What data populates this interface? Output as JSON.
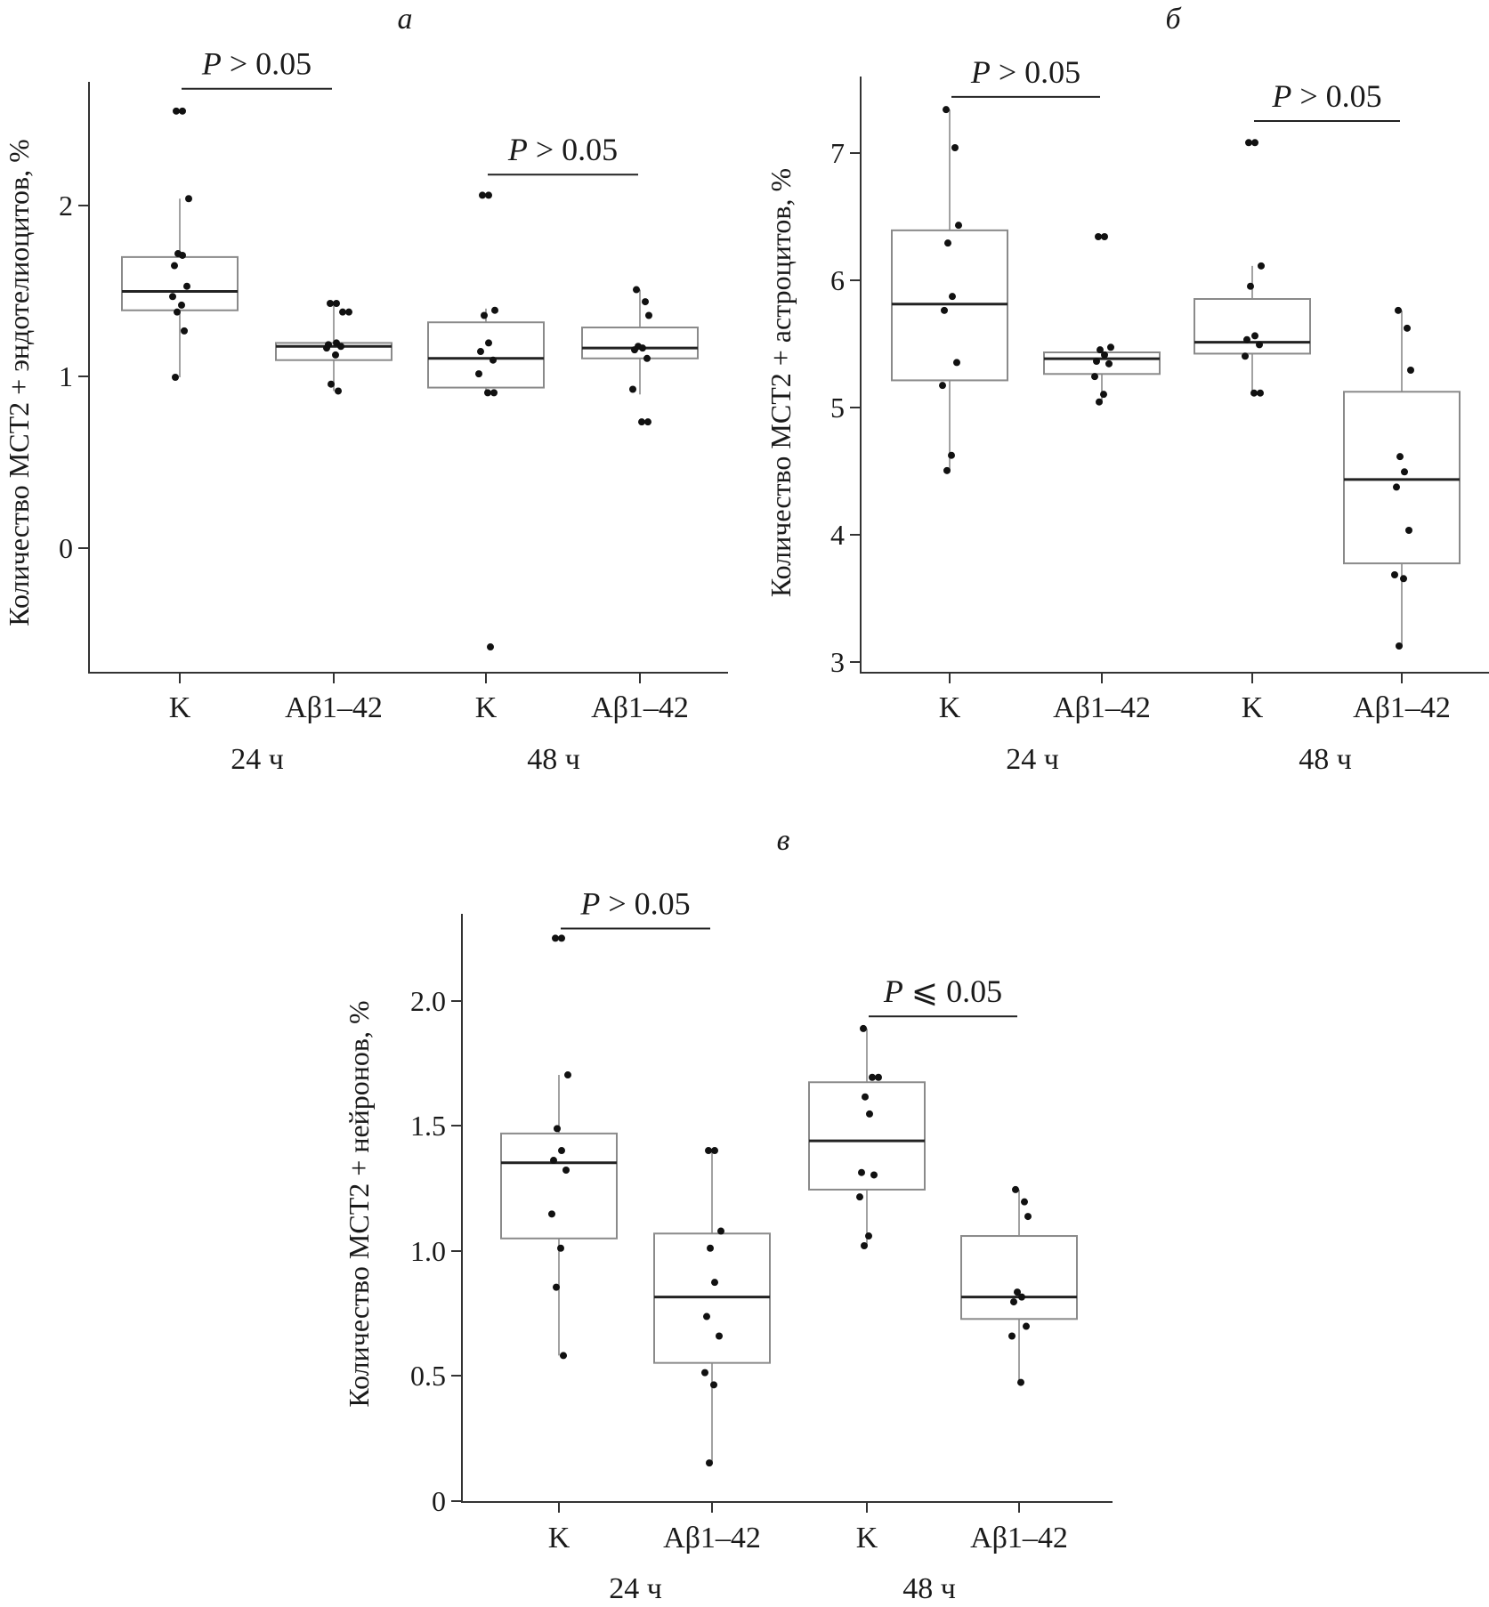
{
  "colors": {
    "axis": "#333333",
    "box_edge": "#8a8a8a",
    "median": "#222222",
    "points": "#111111",
    "background": "#ffffff"
  },
  "chart_data": [
    {
      "id": "a",
      "type": "box",
      "panel_label": "а",
      "ylabel": "Количество MCT2 + эндотелиоцитов, %",
      "ylim": [
        -0.72,
        2.72
      ],
      "yticks": [
        0,
        1,
        2
      ],
      "ytick_labels": [
        "0",
        "1",
        "2"
      ],
      "categories": [
        "K",
        "Aβ1–42",
        "K",
        "Aβ1–42"
      ],
      "group_labels": [
        "24 ч",
        "48 ч"
      ],
      "boxes": [
        {
          "category": "K",
          "group": "24 ч",
          "min": 1.0,
          "q1": 1.39,
          "median": 1.5,
          "q3": 1.7,
          "max": 2.04
        },
        {
          "category": "Aβ1–42",
          "group": "24 ч",
          "min": 0.92,
          "q1": 1.1,
          "median": 1.18,
          "q3": 1.2,
          "max": 1.42
        },
        {
          "category": "K",
          "group": "48 ч",
          "min": 0.9,
          "q1": 0.94,
          "median": 1.11,
          "q3": 1.32,
          "max": 1.4
        },
        {
          "category": "Aβ1–42",
          "group": "48 ч",
          "min": 0.9,
          "q1": 1.11,
          "median": 1.17,
          "q3": 1.29,
          "max": 1.51
        }
      ],
      "points": [
        [
          2.55,
          2.55,
          2.04,
          1.72,
          1.71,
          1.65,
          1.53,
          1.47,
          1.42,
          1.38,
          1.27,
          1.0
        ],
        [
          1.43,
          1.43,
          1.38,
          1.38,
          1.2,
          1.19,
          1.18,
          1.17,
          1.13,
          0.96,
          0.92
        ],
        [
          2.06,
          2.06,
          1.39,
          1.36,
          1.2,
          1.15,
          1.1,
          1.02,
          0.91,
          0.91,
          -0.57
        ],
        [
          1.51,
          1.44,
          1.36,
          1.18,
          1.17,
          1.16,
          1.11,
          0.93,
          0.74,
          0.74
        ]
      ],
      "comparisons": [
        {
          "from": 0,
          "to": 1,
          "label_p": "P",
          "label_rest": " > 0.05",
          "y": 2.68
        },
        {
          "from": 2,
          "to": 3,
          "label_p": "P",
          "label_rest": " > 0.05",
          "y": 2.18
        }
      ]
    },
    {
      "id": "b",
      "type": "box",
      "panel_label": "б",
      "ylabel": "Количество MCT2 + астроцитов, %",
      "ylim": [
        2.91,
        7.6
      ],
      "yticks": [
        3,
        4,
        5,
        6,
        7
      ],
      "ytick_labels": [
        "3",
        "4",
        "5",
        "6",
        "7"
      ],
      "categories": [
        "K",
        "Aβ1–42",
        "K",
        "Aβ1–42"
      ],
      "group_labels": [
        "24 ч",
        "48 ч"
      ],
      "boxes": [
        {
          "category": "K",
          "group": "24 ч",
          "min": 4.5,
          "q1": 5.21,
          "median": 5.81,
          "q3": 6.39,
          "max": 7.34
        },
        {
          "category": "Aβ1–42",
          "group": "24 ч",
          "min": 5.04,
          "q1": 5.26,
          "median": 5.38,
          "q3": 5.43,
          "max": 5.46
        },
        {
          "category": "K",
          "group": "48 ч",
          "min": 5.11,
          "q1": 5.42,
          "median": 5.51,
          "q3": 5.85,
          "max": 6.11
        },
        {
          "category": "Aβ1–42",
          "group": "48 ч",
          "min": 3.12,
          "q1": 3.77,
          "median": 4.43,
          "q3": 5.12,
          "max": 5.76
        }
      ],
      "points": [
        [
          7.34,
          7.04,
          6.43,
          6.29,
          5.87,
          5.76,
          5.35,
          5.17,
          4.62,
          4.5
        ],
        [
          6.34,
          6.34,
          5.47,
          5.45,
          5.41,
          5.36,
          5.34,
          5.24,
          5.1,
          5.04
        ],
        [
          7.08,
          7.08,
          6.11,
          5.95,
          5.56,
          5.53,
          5.49,
          5.4,
          5.11,
          5.11
        ],
        [
          5.76,
          5.62,
          5.29,
          4.61,
          4.49,
          4.37,
          4.03,
          3.68,
          3.65,
          3.12
        ]
      ],
      "comparisons": [
        {
          "from": 0,
          "to": 1,
          "label_p": "P",
          "label_rest": " > 0.05",
          "y": 7.44
        },
        {
          "from": 2,
          "to": 3,
          "label_p": "P",
          "label_rest": " > 0.05",
          "y": 7.25
        }
      ]
    },
    {
      "id": "c",
      "type": "box",
      "panel_label": "в",
      "ylabel": "Количество MCT2 + нейронов, %",
      "ylim": [
        -0.06,
        2.35
      ],
      "yticks": [
        0,
        0.5,
        1.0,
        1.5,
        2.0
      ],
      "ytick_labels": [
        "0",
        "0.5",
        "1.0",
        "1.5",
        "2.0"
      ],
      "categories": [
        "K",
        "Aβ1–42",
        "K",
        "Aβ1–42"
      ],
      "group_labels": [
        "24 ч",
        "48 ч"
      ],
      "boxes": [
        {
          "category": "K",
          "group": "24 ч",
          "min": 0.54,
          "q1": 1.02,
          "median": 1.33,
          "q3": 1.45,
          "max": 1.69
        },
        {
          "category": "Aβ1–42",
          "group": "24 ч",
          "min": 0.1,
          "q1": 0.51,
          "median": 0.78,
          "q3": 1.04,
          "max": 1.38
        },
        {
          "category": "K",
          "group": "48 ч",
          "min": 0.99,
          "q1": 1.22,
          "median": 1.42,
          "q3": 1.66,
          "max": 1.88
        },
        {
          "category": "Aβ1–42",
          "group": "48 ч",
          "min": 0.43,
          "q1": 0.69,
          "median": 0.78,
          "q3": 1.03,
          "max": 1.22
        }
      ],
      "points": [
        [
          2.25,
          2.25,
          1.69,
          1.47,
          1.38,
          1.34,
          1.3,
          1.12,
          0.98,
          0.82,
          0.54
        ],
        [
          1.38,
          1.38,
          1.05,
          0.98,
          0.84,
          0.7,
          0.62,
          0.47,
          0.42,
          0.1
        ],
        [
          1.88,
          1.68,
          1.68,
          1.6,
          1.53,
          1.29,
          1.28,
          1.19,
          1.03,
          0.99
        ],
        [
          1.22,
          1.17,
          1.11,
          0.8,
          0.78,
          0.76,
          0.66,
          0.62,
          0.43
        ]
      ],
      "comparisons": [
        {
          "from": 0,
          "to": 1,
          "label_p": "P",
          "label_rest": " > 0.05",
          "y": 2.29
        },
        {
          "from": 2,
          "to": 3,
          "label_p": "P",
          "label_rest": " ⩽ 0.05",
          "y": 1.93
        }
      ]
    }
  ]
}
